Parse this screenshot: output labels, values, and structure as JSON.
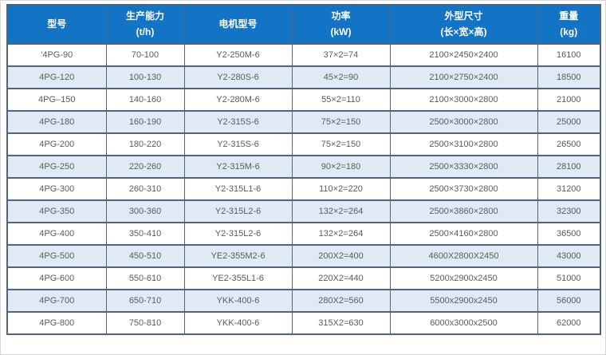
{
  "colors": {
    "header_bg": "#1373c4",
    "header_text": "#ffffff",
    "row_alt_bg": "#e0eaf5",
    "border": "#54637d",
    "text": "#585c63"
  },
  "table": {
    "columns": [
      {
        "id": "model",
        "label": "型号",
        "sub": ""
      },
      {
        "id": "capacity",
        "label": "生产能力",
        "sub": "(t/h)"
      },
      {
        "id": "motor",
        "label": "电机型号",
        "sub": ""
      },
      {
        "id": "power",
        "label": "功率",
        "sub": "(kW)"
      },
      {
        "id": "dimensions",
        "label": "外型尺寸",
        "sub": "(长×宽×高)"
      },
      {
        "id": "weight",
        "label": "重量",
        "sub": "(kg)"
      }
    ],
    "rows": [
      [
        "'4PG-90",
        "70-100",
        "Y2-250M-6",
        "37×2=74",
        "2100×2450×2400",
        "16100"
      ],
      [
        "4PG-120",
        "100-130",
        "Y2-280S-6",
        "45×2=90",
        "2100×2750×2400",
        "18500"
      ],
      [
        "4PG–150",
        "140-160",
        "Y2-280M-6",
        "55×2=110",
        "2100×3000×2800",
        "21000"
      ],
      [
        "4PG-180",
        "160-190",
        "Y2-315S-6",
        "75×2=150",
        "2500×3000×2800",
        "25000"
      ],
      [
        "4PG-200",
        "180-220",
        "Y2-315S-6",
        "75×2=150",
        "2500×3100×2800",
        "26500"
      ],
      [
        "4PG-250",
        "220-260",
        "Y2-315M-6",
        "90×2=180",
        "2500×3330×2800",
        "28100"
      ],
      [
        "4PG-300",
        "260-310",
        "Y2-315L1-6",
        "110×2=220",
        "2500×3730×2800",
        "31200"
      ],
      [
        "4PG-350",
        "300-360",
        "Y2-315L2-6",
        "132×2=264",
        "2500×3860×2800",
        "32300"
      ],
      [
        "4PG-400",
        "350-410",
        "Y2-315L2-6",
        "132×2=264",
        "2500×4160×2800",
        "36500"
      ],
      [
        "4PG-500",
        "450-510",
        "YE2-355M2-6",
        "200X2=400",
        "4600X2800X2450",
        "43000"
      ],
      [
        "4PG-600",
        "550-610",
        "YE2-355L1-6",
        "220X2=440",
        "5200x2900x2450",
        "51000"
      ],
      [
        "4PG-700",
        "650-710",
        "YKK-400-6",
        "280X2=560",
        "5500x2900x2450",
        "56000"
      ],
      [
        "4PG-800",
        "750-810",
        "YKK-400-6",
        "315X2=630",
        "6000x3000x2500",
        "62000"
      ]
    ]
  }
}
